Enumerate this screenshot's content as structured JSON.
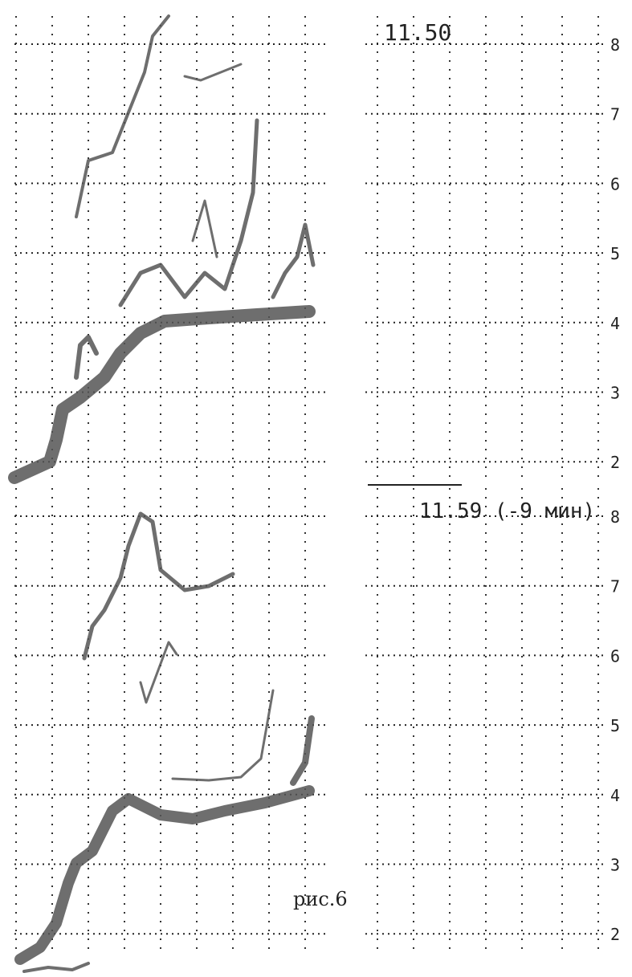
{
  "panels": [
    {
      "time": "11.50",
      "ticks": [
        "8",
        "7",
        "6",
        "5",
        "4",
        "3",
        "2"
      ]
    },
    {
      "time": "11.59 (-9 мин)",
      "ticks": [
        "8",
        "7",
        "6",
        "5",
        "4",
        "3",
        "2"
      ]
    }
  ],
  "caption": "рис.6"
}
